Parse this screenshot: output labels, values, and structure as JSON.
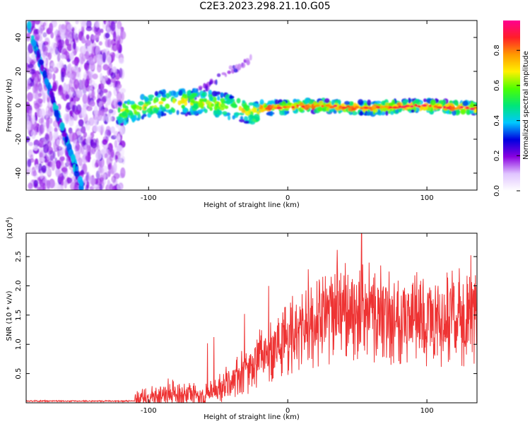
{
  "title": "C2E3.2023.298.21.10.G05",
  "chart_data": [
    {
      "type": "heatmap",
      "title": "C2E3.2023.298.21.10.G05",
      "xlabel": "Height of straight line (km)",
      "ylabel": "Frequency (Hz)",
      "xlim": [
        -188,
        136
      ],
      "ylim": [
        -50,
        50
      ],
      "xticks": [
        "-100",
        "0",
        "100"
      ],
      "xtick_values": [
        -100,
        0,
        100
      ],
      "yticks": [
        "-40",
        "-20",
        "0",
        "20",
        "40"
      ],
      "ytick_values": [
        -40,
        -20,
        0,
        20,
        40
      ],
      "colorbar": {
        "label": "Normalized spectral amplitude",
        "range": [
          0,
          0.97
        ],
        "ticks": [
          "0.0",
          "0.2",
          "0.4",
          "0.6",
          "0.8"
        ],
        "tick_values": [
          0.0,
          0.2,
          0.4,
          0.6,
          0.8
        ],
        "colors": [
          "#ffffff",
          "#e0c4ff",
          "#8a00e0",
          "#0000e0",
          "#00c8ff",
          "#00e678",
          "#4cff00",
          "#fff000",
          "#ff9900",
          "#ff1e28",
          "#ff0090"
        ]
      },
      "features": {
        "noise_region_km": [
          -188,
          -118
        ],
        "main_band": {
          "x_km": [
            -122,
            136
          ],
          "freq_hz": [
            1,
            -4,
            0,
            0
          ],
          "dominant_amplitude": 0.85
        },
        "descending_trace": {
          "from": [
            -186,
            46
          ],
          "to": [
            -148,
            -48
          ]
        },
        "secondary_arc": {
          "from": [
            -75,
            2
          ],
          "to": [
            -25,
            29
          ]
        }
      }
    },
    {
      "type": "line",
      "xlabel": "Height of straight line (km)",
      "ylabel": "SNR (10 * v/v)",
      "y_scale_label": "(x10",
      "y_scale_exp": "4",
      "xlim": [
        -188,
        136
      ],
      "ylim": [
        0,
        2.9
      ],
      "xticks": [
        "-100",
        "0",
        "100"
      ],
      "xtick_values": [
        -100,
        0,
        100
      ],
      "yticks": [
        "0.5",
        "1.0",
        "1.5",
        "2.0",
        "2.5"
      ],
      "ytick_values": [
        0.5,
        1.0,
        1.5,
        2.0,
        2.5
      ],
      "color": "#ee3333",
      "envelope": {
        "x": [
          -188,
          -110,
          -100,
          -85,
          -70,
          -60,
          -50,
          -40,
          -30,
          -20,
          -10,
          0,
          10,
          20,
          30,
          40,
          50,
          60,
          70,
          80,
          90,
          100,
          110,
          120,
          130,
          136
        ],
        "mid": [
          0.03,
          0.03,
          0.07,
          0.17,
          0.12,
          0.1,
          0.22,
          0.38,
          0.55,
          0.75,
          0.95,
          1.1,
          1.25,
          1.35,
          1.48,
          1.55,
          1.5,
          1.55,
          1.5,
          1.48,
          1.45,
          1.45,
          1.4,
          1.48,
          1.45,
          1.42
        ]
      },
      "peak": {
        "x": 53,
        "y": 2.9
      }
    }
  ]
}
